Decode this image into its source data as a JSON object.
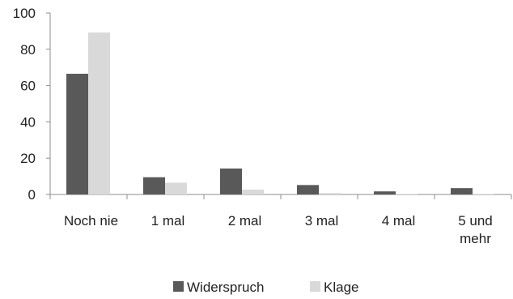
{
  "chart_data": {
    "type": "bar",
    "title": "",
    "xlabel": "",
    "ylabel": "",
    "categories": [
      [
        "Noch nie"
      ],
      [
        "1 mal"
      ],
      [
        "2 mal"
      ],
      [
        "3 mal"
      ],
      [
        "4 mal"
      ],
      [
        "5 und",
        "mehr"
      ]
    ],
    "series": [
      {
        "name": "Widerspruch",
        "color": "#595959",
        "values": [
          66.5,
          9.5,
          14.3,
          5.2,
          1.7,
          3.5
        ]
      },
      {
        "name": "Klage",
        "color": "#d9d9d9",
        "values": [
          89.2,
          6.5,
          2.7,
          0.8,
          0.2,
          0.3
        ]
      }
    ],
    "ylim": [
      0,
      100
    ],
    "yticks": [
      0,
      20,
      40,
      60,
      80,
      100
    ],
    "grid": false,
    "legend": "bottom-center"
  }
}
